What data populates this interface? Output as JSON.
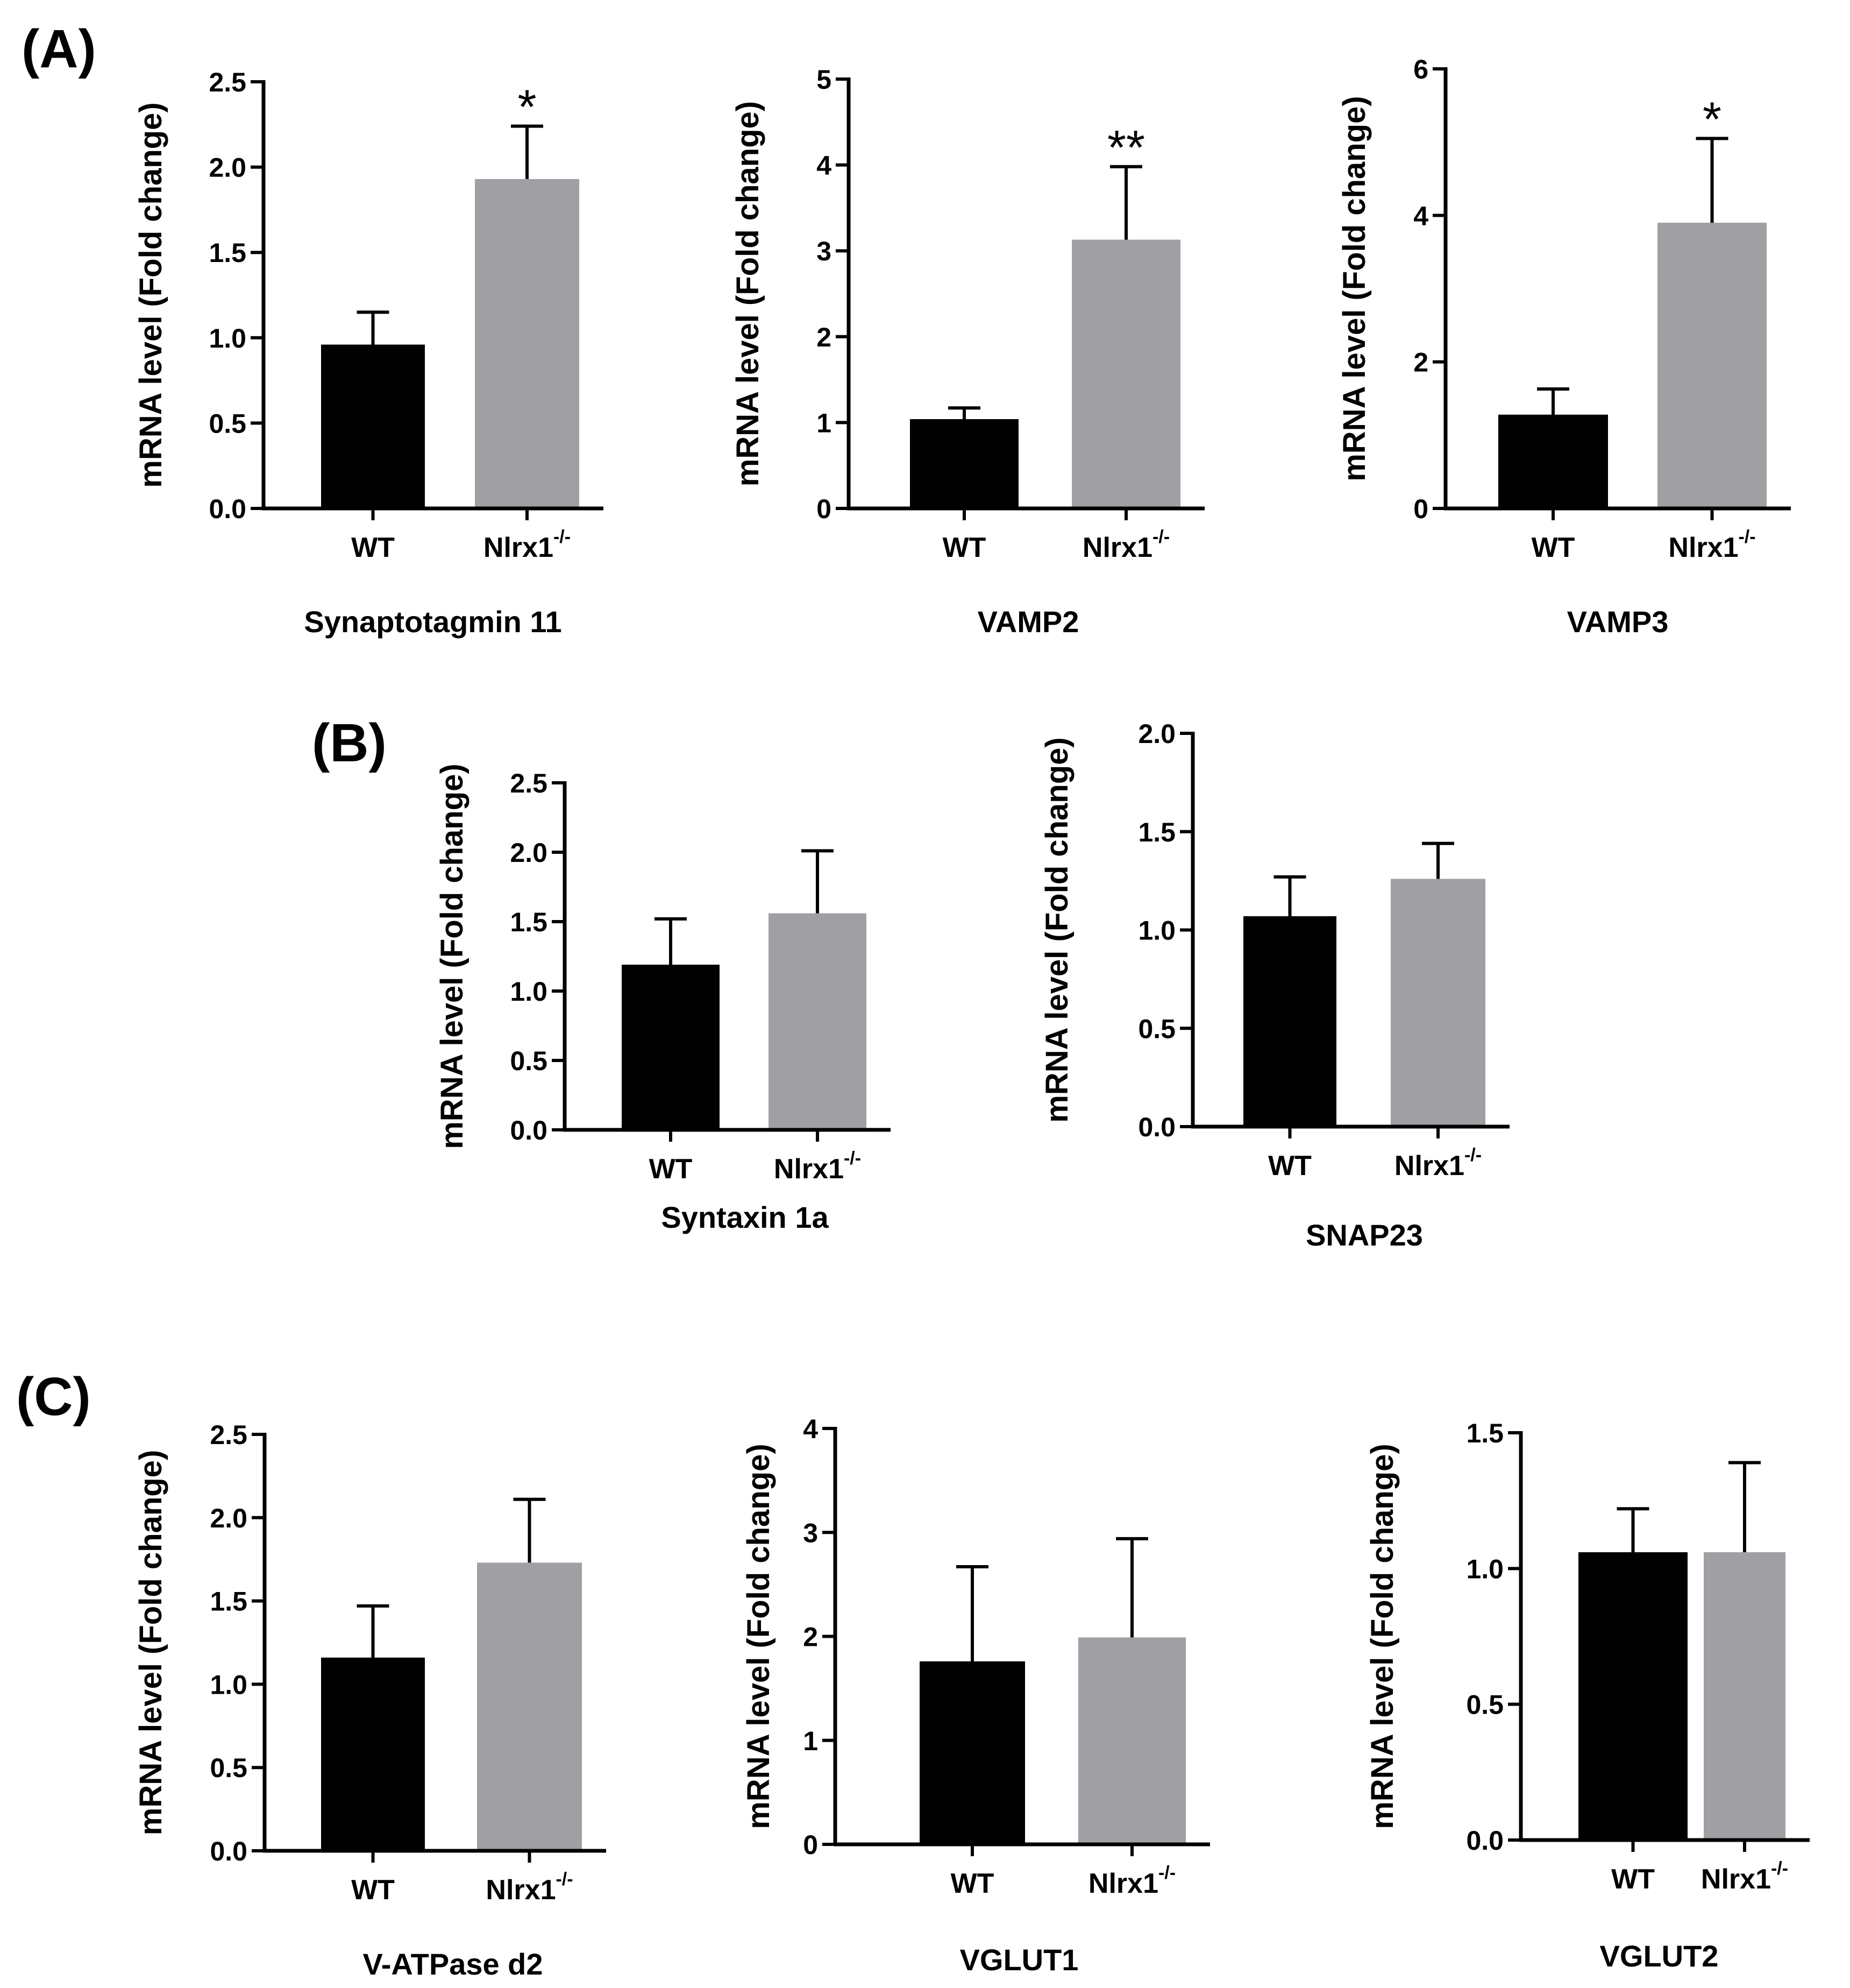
{
  "figure": {
    "panel_labels": [
      "(A)",
      "(B)",
      "(C)"
    ]
  },
  "chart_data": [
    {
      "type": "bar",
      "panel": "(A)",
      "title": "",
      "xlabel": "Synaptotagmin 11",
      "ylabel": "mRNA level (Fold change)",
      "ylim": [
        0,
        2.5
      ],
      "yticks": [
        0,
        0.5,
        1,
        1.5,
        2,
        2.5
      ],
      "ytick_labels": [
        "0.0",
        "0.5",
        "1.0",
        "1.5",
        "2.0",
        "2.5"
      ],
      "categories": [
        "WT",
        "Nlrx1"
      ],
      "category_superscripts": [
        "",
        "-/-"
      ],
      "values": [
        0.96,
        1.93
      ],
      "errors": [
        0.19,
        0.31
      ],
      "colors": [
        "#000000",
        "#a0a0a4"
      ],
      "significance": [
        "",
        "*"
      ]
    },
    {
      "type": "bar",
      "panel": "(A)",
      "title": "",
      "xlabel": "VAMP2",
      "ylabel": "mRNA level (Fold change)",
      "ylim": [
        0,
        5
      ],
      "yticks": [
        0,
        1,
        2,
        3,
        4,
        5
      ],
      "ytick_labels": [
        "0",
        "1",
        "2",
        "3",
        "4",
        "5"
      ],
      "categories": [
        "WT",
        "Nlrx1"
      ],
      "category_superscripts": [
        "",
        "-/-"
      ],
      "values": [
        1.04,
        3.13
      ],
      "errors": [
        0.13,
        0.85
      ],
      "colors": [
        "#000000",
        "#a0a0a4"
      ],
      "significance": [
        "",
        "**"
      ]
    },
    {
      "type": "bar",
      "panel": "(A)",
      "title": "",
      "xlabel": "VAMP3",
      "ylabel": "mRNA level (Fold change)",
      "ylim": [
        0,
        6
      ],
      "yticks": [
        0,
        2,
        4,
        6
      ],
      "ytick_labels": [
        "0",
        "2",
        "4",
        "6"
      ],
      "categories": [
        "WT",
        "Nlrx1"
      ],
      "category_superscripts": [
        "",
        "-/-"
      ],
      "values": [
        1.28,
        3.9
      ],
      "errors": [
        0.35,
        1.15
      ],
      "colors": [
        "#000000",
        "#a0a0a4"
      ],
      "significance": [
        "",
        "*"
      ]
    },
    {
      "type": "bar",
      "panel": "(B)",
      "title": "",
      "xlabel": "Syntaxin 1a",
      "ylabel": "mRNA level (Fold change)",
      "ylim": [
        0,
        2.5
      ],
      "yticks": [
        0,
        0.5,
        1,
        1.5,
        2,
        2.5
      ],
      "ytick_labels": [
        "0.0",
        "0.5",
        "1.0",
        "1.5",
        "2.0",
        "2.5"
      ],
      "categories": [
        "WT",
        "Nlrx1"
      ],
      "category_superscripts": [
        "",
        "-/-"
      ],
      "values": [
        1.19,
        1.56
      ],
      "errors": [
        0.33,
        0.45
      ],
      "colors": [
        "#000000",
        "#a0a0a4"
      ],
      "significance": [
        "",
        ""
      ]
    },
    {
      "type": "bar",
      "panel": "(B)",
      "title": "",
      "xlabel": "SNAP23",
      "ylabel": "mRNA level (Fold change)",
      "ylim": [
        0,
        2
      ],
      "yticks": [
        0,
        0.5,
        1,
        1.5,
        2
      ],
      "ytick_labels": [
        "0.0",
        "0.5",
        "1.0",
        "1.5",
        "2.0"
      ],
      "categories": [
        "WT",
        "Nlrx1"
      ],
      "category_superscripts": [
        "",
        "-/-"
      ],
      "values": [
        1.07,
        1.26
      ],
      "errors": [
        0.2,
        0.18
      ],
      "colors": [
        "#000000",
        "#a0a0a4"
      ],
      "significance": [
        "",
        ""
      ]
    },
    {
      "type": "bar",
      "panel": "(C)",
      "title": "",
      "xlabel": "V-ATPase d2",
      "ylabel": "mRNA level (Fold change)",
      "ylim": [
        0,
        2.5
      ],
      "yticks": [
        0,
        0.5,
        1,
        1.5,
        2,
        2.5
      ],
      "ytick_labels": [
        "0.0",
        "0.5",
        "1.0",
        "1.5",
        "2.0",
        "2.5"
      ],
      "categories": [
        "WT",
        "Nlrx1"
      ],
      "category_superscripts": [
        "",
        "-/-"
      ],
      "values": [
        1.16,
        1.73
      ],
      "errors": [
        0.31,
        0.38
      ],
      "colors": [
        "#000000",
        "#a0a0a4"
      ],
      "significance": [
        "",
        ""
      ]
    },
    {
      "type": "bar",
      "panel": "(C)",
      "title": "",
      "xlabel": "VGLUT1",
      "ylabel": "mRNA level (Fold change)",
      "ylim": [
        0,
        4
      ],
      "yticks": [
        0,
        1,
        2,
        3,
        4
      ],
      "ytick_labels": [
        "0",
        "1",
        "2",
        "3",
        "4"
      ],
      "categories": [
        "WT",
        "Nlrx1"
      ],
      "category_superscripts": [
        "",
        "-/-"
      ],
      "values": [
        1.76,
        1.99
      ],
      "errors": [
        0.91,
        0.95
      ],
      "colors": [
        "#000000",
        "#a0a0a4"
      ],
      "significance": [
        "",
        ""
      ]
    },
    {
      "type": "bar",
      "panel": "(C)",
      "title": "",
      "xlabel": "VGLUT2",
      "ylabel": "mRNA level (Fold change)",
      "ylim": [
        0,
        1.5
      ],
      "yticks": [
        0,
        0.5,
        1,
        1.5
      ],
      "ytick_labels": [
        "0.0",
        "0.5",
        "1.0",
        "1.5"
      ],
      "categories": [
        "WT",
        "Nlrx1"
      ],
      "category_superscripts": [
        "",
        "-/-"
      ],
      "values": [
        1.06,
        1.06
      ],
      "errors": [
        0.16,
        0.33
      ],
      "colors": [
        "#000000",
        "#a0a0a4"
      ],
      "significance": [
        "",
        ""
      ]
    }
  ]
}
